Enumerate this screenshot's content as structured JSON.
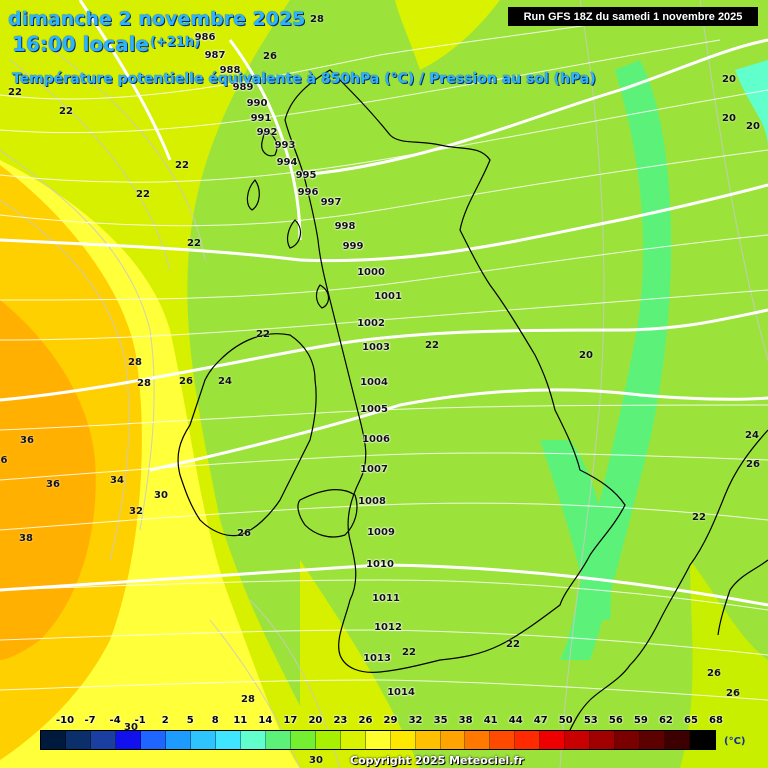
{
  "header": {
    "date_title": "dimanche 2 novembre 2025",
    "time_title": "16:00 locale",
    "lead_time": "(+21h)",
    "product_title": "Température potentielle équivalente à 850hPa (°C) / Pression au sol (hPa)",
    "run_info": "Run GFS 18Z du samedi 1 novembre 2025"
  },
  "isobar_labels": [
    "986",
    "987",
    "988",
    "989",
    "990",
    "991",
    "992",
    "993",
    "994",
    "995",
    "996",
    "997",
    "998",
    "999",
    "1000",
    "1001",
    "1002",
    "1003",
    "1004",
    "1005",
    "1006",
    "1007",
    "1008",
    "1009",
    "1010",
    "1011",
    "1012",
    "1013",
    "1014"
  ],
  "temperature_labels": [
    "28",
    "26",
    "22",
    "22",
    "22",
    "22",
    "22",
    "22",
    "22",
    "20",
    "20",
    "20",
    "20",
    "28",
    "28",
    "26",
    "24",
    "36",
    "36",
    "34",
    "30",
    "32",
    "38",
    "26",
    "22",
    "22",
    "22",
    "24",
    "26",
    "26",
    "26",
    "28",
    "30",
    "30",
    "6"
  ],
  "color_scale": {
    "unit": "(°C)",
    "labels": [
      "-10",
      "-7",
      "-4",
      "-1",
      "2",
      "5",
      "8",
      "11",
      "14",
      "17",
      "20",
      "23",
      "26",
      "29",
      "32",
      "35",
      "38",
      "41",
      "44",
      "47",
      "50",
      "53",
      "56",
      "59",
      "62",
      "65",
      "68"
    ],
    "colors": [
      "#001a3d",
      "#0b2f6b",
      "#1a3fa0",
      "#1111ee",
      "#1e66ff",
      "#1e9bff",
      "#2ec5ff",
      "#40e6ff",
      "#60ffcc",
      "#5cf27a",
      "#74f030",
      "#a7f000",
      "#d8f200",
      "#ffff2e",
      "#ffe800",
      "#ffc000",
      "#ffa400",
      "#ff7800",
      "#ff4a00",
      "#ff2a00",
      "#ee0000",
      "#c80000",
      "#a00000",
      "#7a0000",
      "#5c0000",
      "#3d0000",
      "#000000"
    ]
  },
  "copyright": "Copyright 2025 Meteociel.fr"
}
